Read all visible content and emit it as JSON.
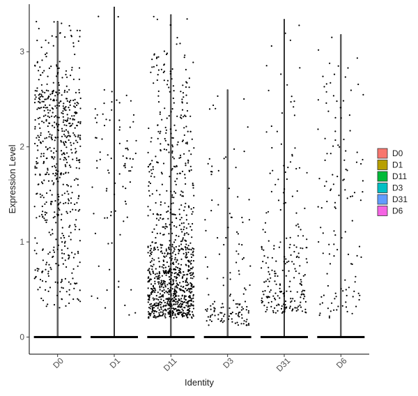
{
  "chart_data": {
    "type": "scatter",
    "subtype": "violin-jitter",
    "title": "",
    "xlabel": "Identity",
    "ylabel": "Expression Level",
    "categories": [
      "D0",
      "D1",
      "D11",
      "D3",
      "D31",
      "D6"
    ],
    "ylim": [
      -0.18,
      3.5
    ],
    "yticks": [
      0,
      1,
      2,
      3
    ],
    "y_tick_labels": [
      "0",
      "1",
      "2",
      "3"
    ],
    "grid": false,
    "legend": {
      "position": "right",
      "entries": [
        {
          "label": "D0",
          "color": "#F8766D"
        },
        {
          "label": "D1",
          "color": "#B79F00"
        },
        {
          "label": "D11",
          "color": "#00BA38"
        },
        {
          "label": "D3",
          "color": "#00BFC4"
        },
        {
          "label": "D31",
          "color": "#619CFF"
        },
        {
          "label": "D6",
          "color": "#F564E3"
        }
      ]
    },
    "series": [
      {
        "category": "D0",
        "max": 3.32,
        "expressing_points": 620
      },
      {
        "category": "D1",
        "max": 3.47,
        "expressing_points": 90
      },
      {
        "category": "D11",
        "max": 3.39,
        "expressing_points": 1000
      },
      {
        "category": "D3",
        "max": 2.6,
        "expressing_points": 140
      },
      {
        "category": "D31",
        "max": 3.34,
        "expressing_points": 230
      },
      {
        "category": "D6",
        "max": 3.18,
        "expressing_points": 130
      }
    ],
    "point_color": "#000000"
  }
}
